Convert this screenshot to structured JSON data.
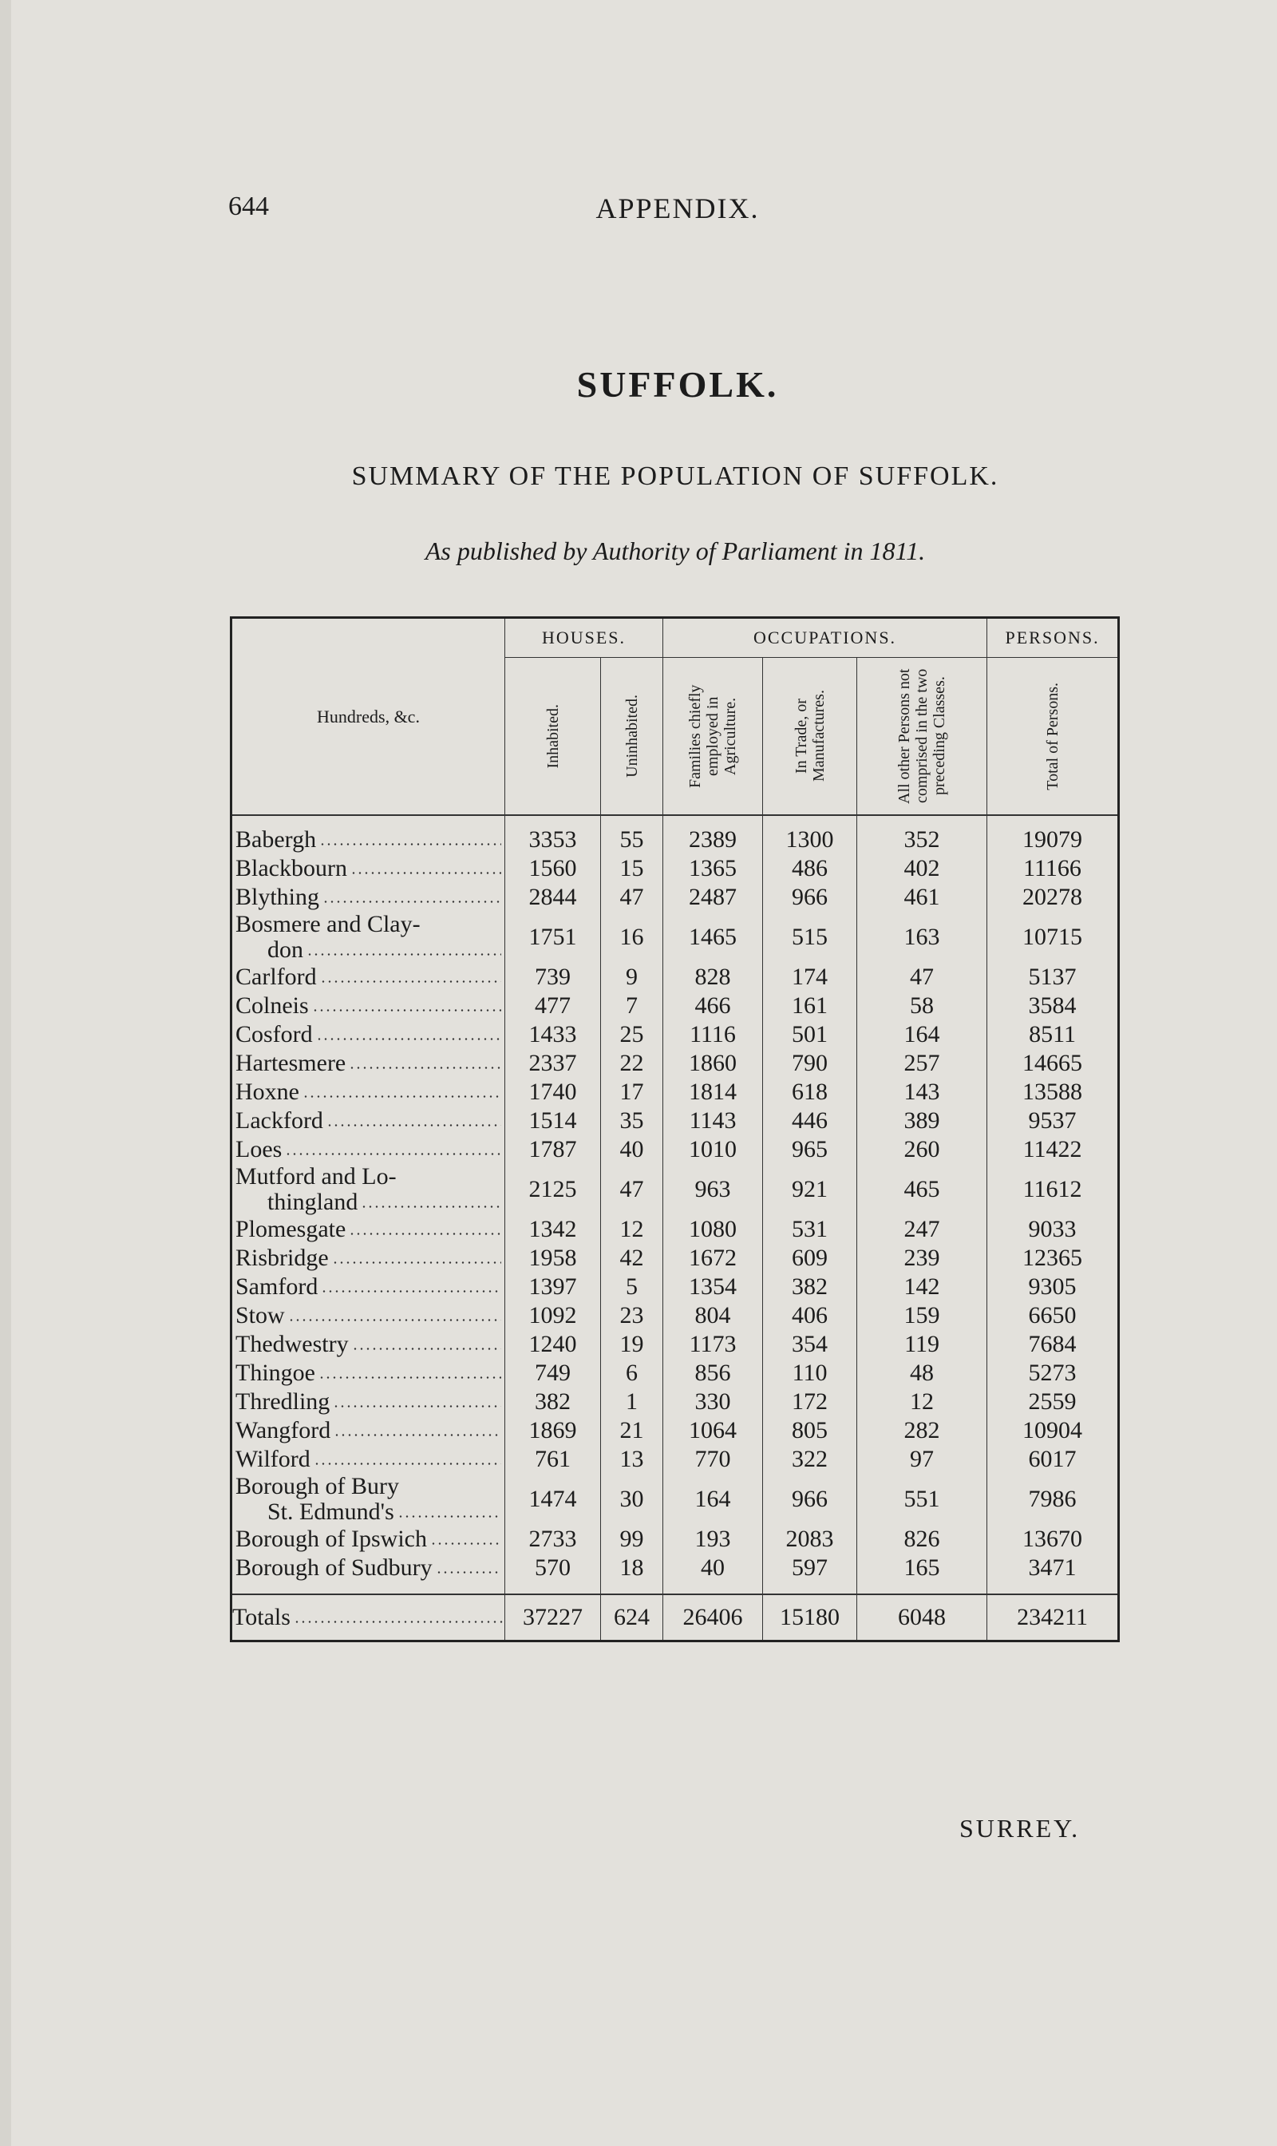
{
  "header": {
    "page_number": "644",
    "running_title": "APPENDIX."
  },
  "title": "SUFFOLK.",
  "subtitle": "SUMMARY OF THE POPULATION OF SUFFOLK.",
  "note": "As published by Authority of Parliament in 1811.",
  "table": {
    "group_headers": [
      "HOUSES.",
      "OCCUPATIONS.",
      "PERSONS."
    ],
    "columns": [
      "Hundreds, &c.",
      "Inhabited.",
      "Uninhabited.",
      "Families chiefly employed in Agriculture.",
      "In Trade, or Manufactures.",
      "All other Persons not comprised in the two preceding Classes.",
      "Total of Persons."
    ],
    "rows": [
      [
        [
          "Babergh"
        ],
        3353,
        55,
        2389,
        1300,
        352,
        19079
      ],
      [
        [
          "Blackbourn"
        ],
        1560,
        15,
        1365,
        486,
        402,
        11166
      ],
      [
        [
          "Blything"
        ],
        2844,
        47,
        2487,
        966,
        461,
        20278
      ],
      [
        [
          "Bosmere and Clay-",
          "don"
        ],
        1751,
        16,
        1465,
        515,
        163,
        10715
      ],
      [
        [
          "Carlford"
        ],
        739,
        9,
        828,
        174,
        47,
        5137
      ],
      [
        [
          "Colneis"
        ],
        477,
        7,
        466,
        161,
        58,
        3584
      ],
      [
        [
          "Cosford"
        ],
        1433,
        25,
        1116,
        501,
        164,
        8511
      ],
      [
        [
          "Hartesmere"
        ],
        2337,
        22,
        1860,
        790,
        257,
        14665
      ],
      [
        [
          "Hoxne"
        ],
        1740,
        17,
        1814,
        618,
        143,
        13588
      ],
      [
        [
          "Lackford"
        ],
        1514,
        35,
        1143,
        446,
        389,
        9537
      ],
      [
        [
          "Loes"
        ],
        1787,
        40,
        1010,
        965,
        260,
        11422
      ],
      [
        [
          "Mutford and Lo-",
          "thingland"
        ],
        2125,
        47,
        963,
        921,
        465,
        11612
      ],
      [
        [
          "Plomesgate"
        ],
        1342,
        12,
        1080,
        531,
        247,
        9033
      ],
      [
        [
          "Risbridge"
        ],
        1958,
        42,
        1672,
        609,
        239,
        12365
      ],
      [
        [
          "Samford"
        ],
        1397,
        5,
        1354,
        382,
        142,
        9305
      ],
      [
        [
          "Stow"
        ],
        1092,
        23,
        804,
        406,
        159,
        6650
      ],
      [
        [
          "Thedwestry"
        ],
        1240,
        19,
        1173,
        354,
        119,
        7684
      ],
      [
        [
          "Thingoe"
        ],
        749,
        6,
        856,
        110,
        48,
        5273
      ],
      [
        [
          "Thredling"
        ],
        382,
        1,
        330,
        172,
        12,
        2559
      ],
      [
        [
          "Wangford"
        ],
        1869,
        21,
        1064,
        805,
        282,
        10904
      ],
      [
        [
          "Wilford"
        ],
        761,
        13,
        770,
        322,
        97,
        6017
      ],
      [
        [
          "Borough of Bury",
          "St. Edmund's"
        ],
        1474,
        30,
        164,
        966,
        551,
        7986
      ],
      [
        [
          "Borough of Ipswich"
        ],
        2733,
        99,
        193,
        2083,
        826,
        13670
      ],
      [
        [
          "Borough of Sudbury"
        ],
        570,
        18,
        40,
        597,
        165,
        3471
      ]
    ],
    "total": [
      [
        "Totals"
      ],
      37227,
      624,
      26406,
      15180,
      6048,
      234211
    ]
  },
  "catchword": "SURREY."
}
